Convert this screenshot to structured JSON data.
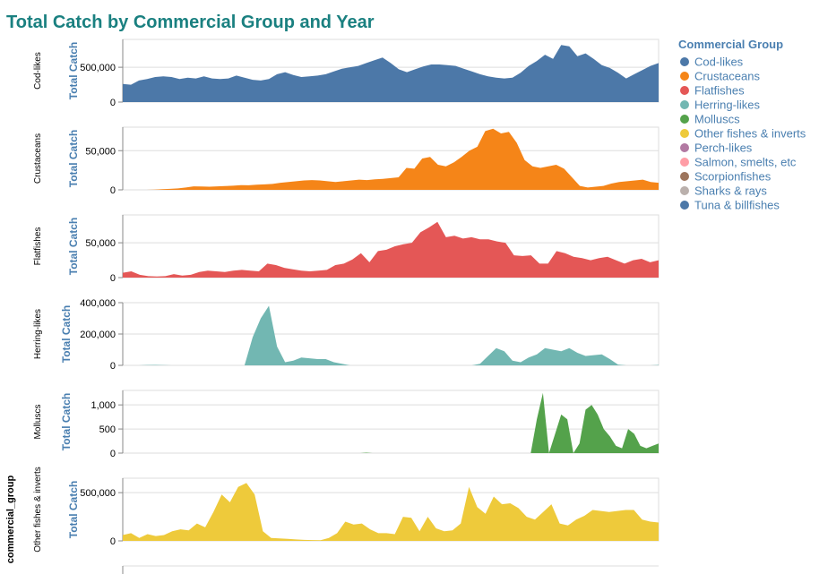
{
  "chart_data": {
    "type": "area",
    "title": "Total Catch by Commercial Group and Year",
    "facet_title": "commercial_group",
    "ylabel": "Total Catch",
    "grid": true,
    "legend": {
      "title": "Commercial Group",
      "position": "top-right",
      "entries": [
        {
          "name": "Cod-likes",
          "color": "#4c78a8"
        },
        {
          "name": "Crustaceans",
          "color": "#f58518"
        },
        {
          "name": "Flatfishes",
          "color": "#e45756"
        },
        {
          "name": "Herring-likes",
          "color": "#72b7b2"
        },
        {
          "name": "Molluscs",
          "color": "#54a24b"
        },
        {
          "name": "Other fishes & inverts",
          "color": "#eeca3b"
        },
        {
          "name": "Perch-likes",
          "color": "#b279a2"
        },
        {
          "name": "Salmon, smelts, etc",
          "color": "#ff9da6"
        },
        {
          "name": "Scorpionfishes",
          "color": "#9d755d"
        },
        {
          "name": "Sharks & rays",
          "color": "#bab0ac"
        },
        {
          "name": "Tuna & billfishes",
          "color": "#4c78a8"
        }
      ]
    },
    "series": [
      {
        "name": "Cod-likes",
        "color": "#4c78a8",
        "ylim": [
          0,
          900000
        ],
        "ticks": [
          {
            "value": 0,
            "label": "0"
          },
          {
            "value": 500000,
            "label": "500,000"
          }
        ],
        "values": [
          260000,
          250000,
          310000,
          330000,
          360000,
          370000,
          360000,
          330000,
          350000,
          340000,
          370000,
          340000,
          330000,
          340000,
          380000,
          350000,
          320000,
          310000,
          330000,
          400000,
          430000,
          390000,
          360000,
          370000,
          380000,
          400000,
          440000,
          480000,
          500000,
          520000,
          560000,
          600000,
          640000,
          560000,
          470000,
          430000,
          470000,
          510000,
          540000,
          540000,
          530000,
          520000,
          480000,
          440000,
          400000,
          370000,
          350000,
          340000,
          350000,
          420000,
          520000,
          590000,
          680000,
          620000,
          820000,
          800000,
          660000,
          700000,
          620000,
          530000,
          490000,
          420000,
          340000,
          400000,
          460000,
          520000,
          560000
        ]
      },
      {
        "name": "Crustaceans",
        "color": "#f58518",
        "ylim": [
          0,
          80000
        ],
        "ticks": [
          {
            "value": 0,
            "label": "0"
          },
          {
            "value": 50000,
            "label": "50,000"
          }
        ],
        "values": [
          0,
          0,
          0,
          0,
          300,
          800,
          1200,
          1800,
          3000,
          4500,
          4200,
          4000,
          4500,
          4800,
          5200,
          6000,
          5800,
          6500,
          7000,
          7500,
          9000,
          10000,
          11000,
          12000,
          12500,
          12000,
          11000,
          10000,
          11000,
          12000,
          13000,
          12500,
          13500,
          14000,
          15000,
          16000,
          28000,
          27000,
          40000,
          42000,
          32000,
          30000,
          35000,
          42000,
          50000,
          55000,
          75000,
          78000,
          72000,
          74000,
          60000,
          38000,
          30000,
          28000,
          30000,
          32000,
          27000,
          16000,
          5000,
          3000,
          4000,
          5000,
          8000,
          10000,
          11000,
          12000,
          13000,
          10000,
          9000
        ]
      },
      {
        "name": "Flatfishes",
        "color": "#e45756",
        "ylim": [
          0,
          90000
        ],
        "ticks": [
          {
            "value": 0,
            "label": "0"
          },
          {
            "value": 50000,
            "label": "50,000"
          }
        ],
        "values": [
          7000,
          9000,
          4000,
          2000,
          1500,
          2000,
          5000,
          3000,
          4000,
          8000,
          10000,
          9000,
          8000,
          10000,
          11000,
          10000,
          9000,
          20000,
          18000,
          14000,
          12000,
          10000,
          9000,
          10000,
          11000,
          18000,
          20000,
          26000,
          35000,
          22000,
          38000,
          40000,
          45000,
          48000,
          50000,
          65000,
          72000,
          80000,
          58000,
          60000,
          56000,
          58000,
          55000,
          55000,
          52000,
          50000,
          32000,
          31000,
          32000,
          20000,
          20000,
          38000,
          35000,
          30000,
          28000,
          25000,
          28000,
          30000,
          25000,
          20000,
          25000,
          27000,
          22000,
          25000
        ]
      },
      {
        "name": "Herring-likes",
        "color": "#72b7b2",
        "ylim": [
          0,
          400000
        ],
        "ticks": [
          {
            "value": 0,
            "label": "0"
          },
          {
            "value": 200000,
            "label": "200,000"
          },
          {
            "value": 400000,
            "label": "400,000"
          }
        ],
        "values": [
          0,
          0,
          0,
          2000,
          3000,
          1000,
          0,
          0,
          0,
          0,
          0,
          0,
          0,
          0,
          0,
          0,
          180000,
          300000,
          380000,
          120000,
          20000,
          30000,
          50000,
          45000,
          40000,
          40000,
          20000,
          10000,
          0,
          0,
          0,
          0,
          0,
          0,
          0,
          0,
          0,
          0,
          0,
          0,
          0,
          0,
          0,
          0,
          10000,
          60000,
          110000,
          90000,
          30000,
          20000,
          50000,
          70000,
          110000,
          100000,
          90000,
          110000,
          80000,
          60000,
          65000,
          70000,
          40000,
          5000,
          0,
          0,
          0,
          0,
          3000
        ]
      },
      {
        "name": "Molluscs",
        "color": "#54a24b",
        "ylim": [
          0,
          1300
        ],
        "ticks": [
          {
            "value": 0,
            "label": "0"
          },
          {
            "value": 500,
            "label": "500"
          },
          {
            "value": 1000,
            "label": "1,000"
          }
        ],
        "values": [
          0,
          0,
          0,
          0,
          0,
          0,
          0,
          0,
          0,
          0,
          0,
          0,
          0,
          0,
          0,
          0,
          0,
          0,
          0,
          0,
          0,
          0,
          0,
          0,
          0,
          0,
          0,
          0,
          0,
          0,
          0,
          0,
          0,
          0,
          0,
          0,
          0,
          0,
          0,
          0,
          10,
          0,
          0,
          0,
          0,
          0,
          0,
          0,
          0,
          0,
          0,
          0,
          0,
          0,
          0,
          0,
          0,
          0,
          0,
          0,
          0,
          0,
          0,
          0,
          0,
          0,
          0,
          0,
          700,
          1250,
          0,
          400,
          800,
          700,
          0,
          200,
          900,
          1000,
          800,
          500,
          350,
          150,
          100,
          500,
          400,
          150,
          100,
          150,
          200
        ]
      },
      {
        "name": "Other fishes & inverts",
        "color": "#eeca3b",
        "ylim": [
          0,
          650000
        ],
        "ticks": [
          {
            "value": 0,
            "label": "0"
          },
          {
            "value": 500000,
            "label": "500,000"
          }
        ],
        "values": [
          60000,
          80000,
          30000,
          70000,
          50000,
          60000,
          100000,
          120000,
          110000,
          180000,
          140000,
          300000,
          480000,
          400000,
          560000,
          600000,
          480000,
          100000,
          30000,
          25000,
          20000,
          15000,
          10000,
          8000,
          7000,
          30000,
          80000,
          200000,
          170000,
          180000,
          120000,
          80000,
          80000,
          70000,
          250000,
          240000,
          100000,
          250000,
          130000,
          100000,
          110000,
          180000,
          560000,
          350000,
          280000,
          460000,
          380000,
          390000,
          340000,
          250000,
          220000,
          300000,
          380000,
          180000,
          160000,
          220000,
          260000,
          320000,
          310000,
          300000,
          310000,
          320000,
          320000,
          220000,
          200000,
          190000
        ]
      }
    ]
  }
}
